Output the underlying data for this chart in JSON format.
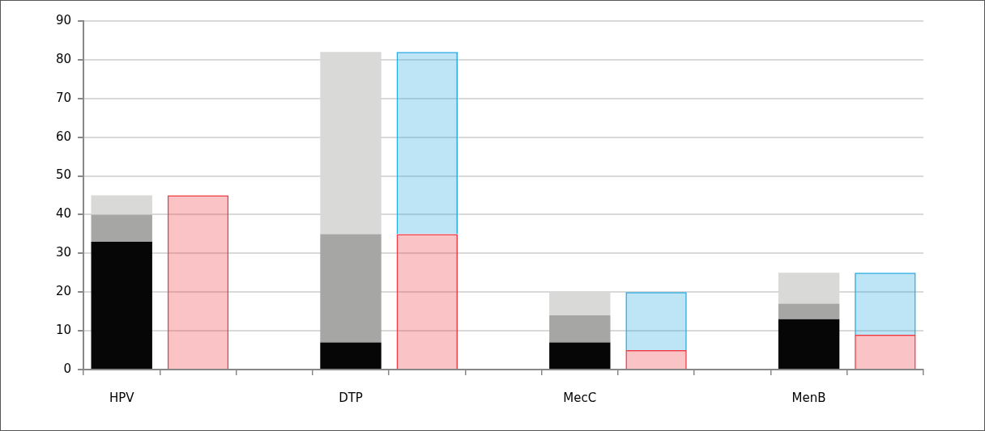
{
  "chart_data": {
    "type": "bar",
    "stacked": true,
    "categories": [
      "HPV",
      null,
      null,
      "DTP",
      null,
      null,
      "MecC",
      null,
      null,
      "MenB",
      null
    ],
    "series": [
      {
        "color": "#060606",
        "values": [
          33,
          null,
          null,
          7,
          null,
          null,
          7,
          null,
          null,
          13,
          null
        ]
      },
      {
        "color": "#a6a6a5",
        "values": [
          7,
          null,
          null,
          28,
          null,
          null,
          7,
          null,
          null,
          4,
          null
        ]
      },
      {
        "color": "#d9d9d8",
        "values": [
          5,
          null,
          null,
          47,
          null,
          null,
          6,
          null,
          null,
          8,
          null
        ]
      },
      {
        "color": "#ee3b43",
        "values": [
          null,
          45,
          null,
          null,
          35,
          null,
          null,
          5,
          null,
          null,
          9
        ]
      },
      {
        "color": "#27aae1",
        "values": [
          null,
          null,
          null,
          null,
          47,
          null,
          null,
          15,
          null,
          null,
          16
        ]
      }
    ],
    "ylim": [
      0,
      90
    ],
    "yticks": [
      0,
      10,
      20,
      30,
      40,
      50,
      60,
      70,
      80,
      90
    ],
    "grid": "y",
    "legend": false
  }
}
